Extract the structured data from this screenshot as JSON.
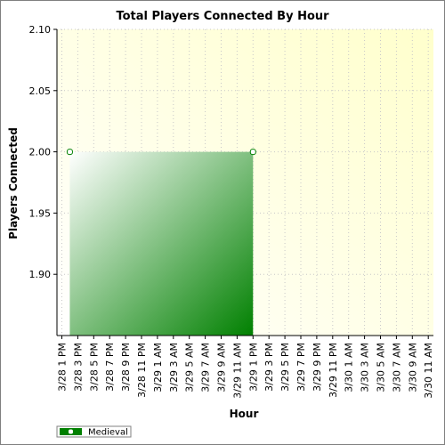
{
  "chart_data": {
    "type": "area",
    "title": "Total Players Connected By Hour",
    "xlabel": "Hour",
    "ylabel": "Players Connected",
    "ylim": [
      1.85,
      2.1
    ],
    "yticks": [
      "1.90",
      "1.95",
      "2.00",
      "2.05",
      "2.10"
    ],
    "categories": [
      "3/28 1 PM",
      "3/28 3 PM",
      "3/28 5 PM",
      "3/28 7 PM",
      "3/28 9 PM",
      "3/28 11 PM",
      "3/29 1 AM",
      "3/29 3 AM",
      "3/29 5 AM",
      "3/29 7 AM",
      "3/29 9 AM",
      "3/29 11 AM",
      "3/29 1 PM",
      "3/29 3 PM",
      "3/29 5 PM",
      "3/29 7 PM",
      "3/29 9 PM",
      "3/29 11 PM",
      "3/30 1 AM",
      "3/30 3 AM",
      "3/30 5 AM",
      "3/30 7 AM",
      "3/30 9 AM",
      "3/30 11 AM"
    ],
    "series": [
      {
        "name": "Medieval",
        "color": "#008000",
        "points": [
          {
            "x": "3/28 2 PM",
            "y": 2.0
          },
          {
            "x": "3/29 1 PM",
            "y": 2.0
          }
        ]
      }
    ],
    "grid": true,
    "legend": "bottom-left",
    "plot_background": [
      "#ffffff",
      "#ffffcc"
    ]
  }
}
